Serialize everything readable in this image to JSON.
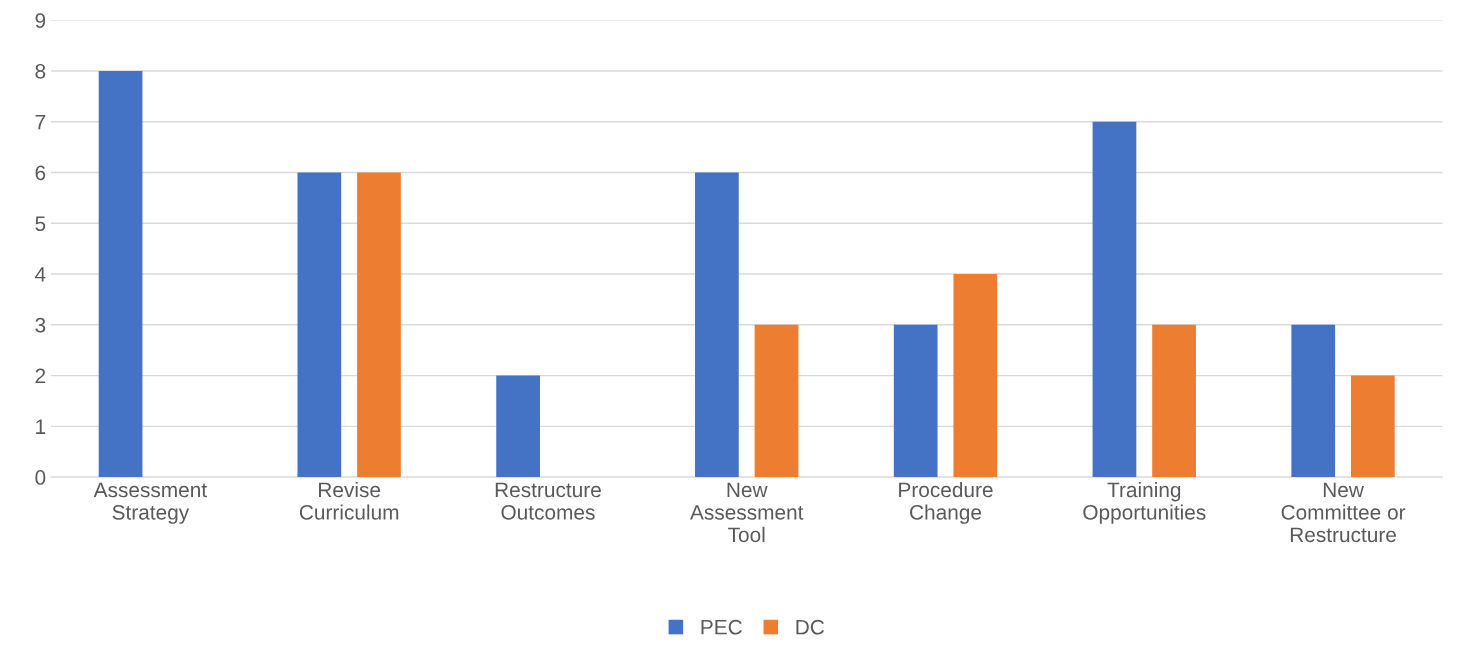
{
  "chart_data": {
    "type": "bar",
    "categories": [
      "Assessment\nStrategy",
      "Revise\nCurriculum",
      "Restructure\nOutcomes",
      "New\nAssessment\nTool",
      "Procedure\nChange",
      "Training\nOpportunities",
      "New\nCommittee or\nRestructure"
    ],
    "series": [
      {
        "name": "PEC",
        "color": "#4472c4",
        "values": [
          8,
          6,
          2,
          6,
          3,
          7,
          3
        ]
      },
      {
        "name": "DC",
        "color": "#ed7d31",
        "values": [
          0,
          6,
          0,
          3,
          4,
          3,
          2
        ]
      }
    ],
    "ylim": [
      0,
      9
    ],
    "yticks": [
      0,
      1,
      2,
      3,
      4,
      5,
      6,
      7,
      8,
      9
    ],
    "grid": "y",
    "legend": "bottom"
  }
}
